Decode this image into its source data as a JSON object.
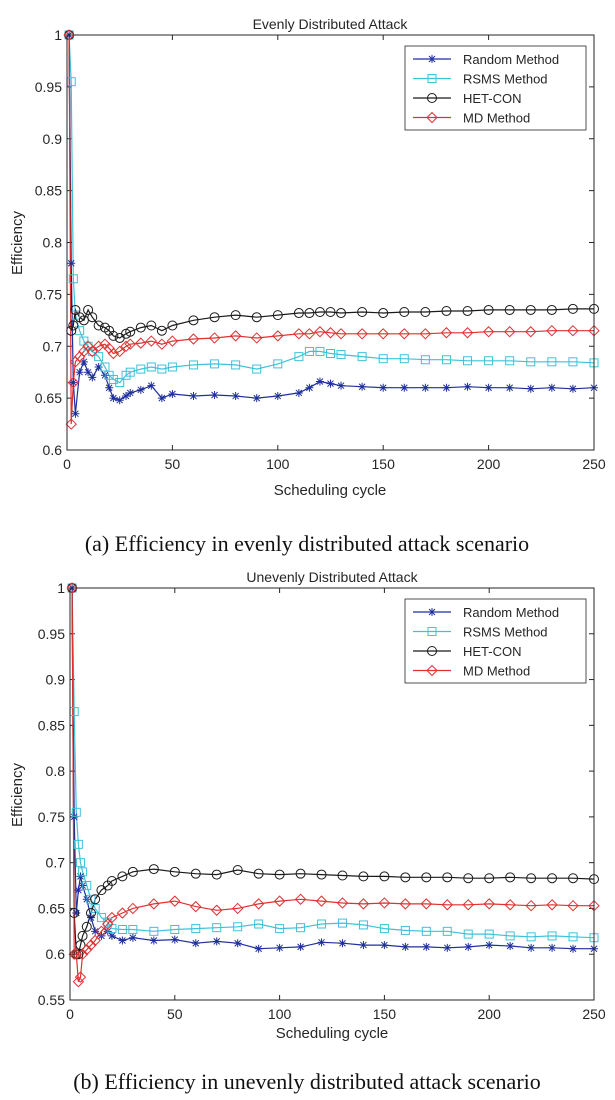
{
  "chart_data": [
    {
      "type": "line",
      "title": "Evenly Distributed Attack",
      "xlabel": "Scheduling cycle",
      "ylabel": "Efficiency",
      "xlim": [
        0,
        250
      ],
      "ylim": [
        0.6,
        1.0
      ],
      "xticks": [
        "0",
        "50",
        "100",
        "150",
        "200",
        "250"
      ],
      "yticks": [
        "0.6",
        "0.65",
        "0.7",
        "0.75",
        "0.8",
        "0.85",
        "0.9",
        "0.95",
        "1"
      ],
      "caption": "(a) Efficiency in evenly distributed attack scenario",
      "legend": [
        "Random Method",
        "RSMS Method",
        "HET-CON",
        "MD Method"
      ],
      "series": [
        {
          "name": "Random Method",
          "color": "#1f2f9e",
          "marker": "star",
          "x": [
            1,
            2,
            3,
            4,
            6,
            8,
            10,
            12,
            15,
            18,
            20,
            22,
            25,
            28,
            30,
            35,
            40,
            45,
            50,
            60,
            70,
            80,
            90,
            100,
            110,
            115,
            120,
            125,
            130,
            140,
            150,
            160,
            170,
            180,
            190,
            200,
            210,
            220,
            230,
            240,
            250
          ],
          "values": [
            1.0,
            0.78,
            0.665,
            0.635,
            0.675,
            0.685,
            0.675,
            0.67,
            0.68,
            0.672,
            0.66,
            0.65,
            0.648,
            0.652,
            0.655,
            0.658,
            0.662,
            0.65,
            0.654,
            0.652,
            0.653,
            0.652,
            0.65,
            0.652,
            0.655,
            0.66,
            0.666,
            0.664,
            0.662,
            0.661,
            0.66,
            0.66,
            0.66,
            0.66,
            0.661,
            0.66,
            0.66,
            0.659,
            0.66,
            0.659,
            0.66
          ]
        },
        {
          "name": "RSMS Method",
          "color": "#3ec2d9",
          "marker": "square",
          "x": [
            1,
            2,
            3,
            4,
            6,
            8,
            10,
            12,
            15,
            18,
            20,
            22,
            25,
            28,
            30,
            35,
            40,
            45,
            50,
            60,
            70,
            80,
            90,
            100,
            110,
            115,
            120,
            125,
            130,
            140,
            150,
            160,
            170,
            180,
            190,
            200,
            210,
            220,
            230,
            240,
            250
          ],
          "values": [
            1.0,
            0.955,
            0.765,
            0.73,
            0.715,
            0.705,
            0.7,
            0.695,
            0.69,
            0.68,
            0.672,
            0.668,
            0.665,
            0.672,
            0.675,
            0.678,
            0.68,
            0.678,
            0.68,
            0.682,
            0.683,
            0.682,
            0.678,
            0.683,
            0.69,
            0.695,
            0.695,
            0.693,
            0.692,
            0.69,
            0.688,
            0.688,
            0.687,
            0.687,
            0.686,
            0.686,
            0.686,
            0.685,
            0.685,
            0.685,
            0.684
          ]
        },
        {
          "name": "HET-CON",
          "color": "#1a1a1a",
          "marker": "circle",
          "x": [
            1,
            2,
            3,
            4,
            6,
            8,
            10,
            12,
            15,
            18,
            20,
            22,
            25,
            28,
            30,
            35,
            40,
            45,
            50,
            60,
            70,
            80,
            90,
            100,
            110,
            115,
            120,
            125,
            130,
            140,
            150,
            160,
            170,
            180,
            190,
            200,
            210,
            220,
            230,
            240,
            250
          ],
          "values": [
            1.0,
            0.715,
            0.72,
            0.735,
            0.728,
            0.725,
            0.735,
            0.728,
            0.72,
            0.718,
            0.715,
            0.71,
            0.708,
            0.712,
            0.714,
            0.718,
            0.72,
            0.715,
            0.72,
            0.725,
            0.728,
            0.73,
            0.728,
            0.73,
            0.732,
            0.732,
            0.733,
            0.733,
            0.732,
            0.733,
            0.732,
            0.733,
            0.733,
            0.734,
            0.734,
            0.735,
            0.735,
            0.735,
            0.735,
            0.736,
            0.736
          ]
        },
        {
          "name": "MD Method",
          "color": "#e03030",
          "marker": "diamond",
          "x": [
            1,
            2,
            3,
            4,
            6,
            8,
            10,
            12,
            15,
            18,
            20,
            22,
            25,
            28,
            30,
            35,
            40,
            45,
            50,
            60,
            70,
            80,
            90,
            100,
            110,
            115,
            120,
            125,
            130,
            140,
            150,
            160,
            170,
            180,
            190,
            200,
            210,
            220,
            230,
            240,
            250
          ],
          "values": [
            1.0,
            0.625,
            0.665,
            0.685,
            0.69,
            0.695,
            0.7,
            0.695,
            0.7,
            0.702,
            0.698,
            0.693,
            0.695,
            0.7,
            0.702,
            0.703,
            0.705,
            0.702,
            0.705,
            0.707,
            0.708,
            0.71,
            0.708,
            0.71,
            0.712,
            0.712,
            0.714,
            0.713,
            0.712,
            0.712,
            0.712,
            0.712,
            0.712,
            0.713,
            0.713,
            0.714,
            0.714,
            0.714,
            0.715,
            0.715,
            0.715
          ]
        }
      ]
    },
    {
      "type": "line",
      "title": "Unevenly Distributed Attack",
      "xlabel": "Scheduling cycle",
      "ylabel": "Efficiency",
      "xlim": [
        0,
        250
      ],
      "ylim": [
        0.55,
        1.0
      ],
      "xticks": [
        "0",
        "50",
        "100",
        "150",
        "200",
        "250"
      ],
      "yticks": [
        "0.55",
        "0.6",
        "0.65",
        "0.7",
        "0.75",
        "0.8",
        "0.85",
        "0.9",
        "0.95",
        "1"
      ],
      "caption": "(b) Efficiency in unevenly distributed attack scenario",
      "legend": [
        "Random Method",
        "RSMS Method",
        "HET-CON",
        "MD Method"
      ],
      "series": [
        {
          "name": "Random Method",
          "color": "#1f2f9e",
          "marker": "star",
          "x": [
            1,
            2,
            3,
            4,
            5,
            6,
            8,
            10,
            12,
            15,
            18,
            20,
            25,
            30,
            40,
            50,
            60,
            70,
            80,
            90,
            100,
            110,
            120,
            130,
            140,
            150,
            160,
            170,
            180,
            190,
            200,
            210,
            220,
            230,
            240,
            250
          ],
          "values": [
            1.0,
            0.75,
            0.645,
            0.67,
            0.685,
            0.675,
            0.66,
            0.64,
            0.625,
            0.62,
            0.625,
            0.62,
            0.615,
            0.618,
            0.615,
            0.616,
            0.612,
            0.614,
            0.612,
            0.606,
            0.607,
            0.608,
            0.613,
            0.612,
            0.61,
            0.61,
            0.608,
            0.608,
            0.607,
            0.608,
            0.61,
            0.609,
            0.607,
            0.607,
            0.606,
            0.606
          ]
        },
        {
          "name": "RSMS Method",
          "color": "#3ec2d9",
          "marker": "square",
          "x": [
            1,
            2,
            3,
            4,
            5,
            6,
            8,
            10,
            12,
            15,
            18,
            20,
            25,
            30,
            40,
            50,
            60,
            70,
            80,
            90,
            100,
            110,
            120,
            130,
            140,
            150,
            160,
            170,
            180,
            190,
            200,
            210,
            220,
            230,
            240,
            250
          ],
          "values": [
            1.0,
            0.865,
            0.755,
            0.72,
            0.7,
            0.69,
            0.675,
            0.66,
            0.65,
            0.64,
            0.635,
            0.628,
            0.627,
            0.627,
            0.625,
            0.627,
            0.628,
            0.629,
            0.63,
            0.633,
            0.628,
            0.629,
            0.633,
            0.634,
            0.632,
            0.628,
            0.626,
            0.625,
            0.625,
            0.622,
            0.622,
            0.62,
            0.619,
            0.62,
            0.619,
            0.618
          ]
        },
        {
          "name": "HET-CON",
          "color": "#1a1a1a",
          "marker": "circle",
          "x": [
            1,
            2,
            3,
            4,
            5,
            6,
            8,
            10,
            12,
            15,
            18,
            20,
            25,
            30,
            40,
            50,
            60,
            70,
            80,
            90,
            100,
            110,
            120,
            130,
            140,
            150,
            160,
            170,
            180,
            190,
            200,
            210,
            220,
            230,
            240,
            250
          ],
          "values": [
            1.0,
            0.645,
            0.6,
            0.6,
            0.61,
            0.62,
            0.63,
            0.645,
            0.66,
            0.67,
            0.675,
            0.68,
            0.685,
            0.69,
            0.693,
            0.69,
            0.688,
            0.687,
            0.692,
            0.688,
            0.687,
            0.688,
            0.687,
            0.686,
            0.685,
            0.685,
            0.684,
            0.684,
            0.684,
            0.683,
            0.683,
            0.684,
            0.683,
            0.683,
            0.683,
            0.682
          ]
        },
        {
          "name": "MD Method",
          "color": "#e03030",
          "marker": "diamond",
          "x": [
            1,
            2,
            3,
            4,
            5,
            6,
            8,
            10,
            12,
            15,
            18,
            20,
            25,
            30,
            40,
            50,
            60,
            70,
            80,
            90,
            100,
            110,
            120,
            130,
            140,
            150,
            160,
            170,
            180,
            190,
            200,
            210,
            220,
            230,
            240,
            250
          ],
          "values": [
            1.0,
            0.6,
            0.6,
            0.57,
            0.575,
            0.6,
            0.605,
            0.61,
            0.615,
            0.625,
            0.633,
            0.64,
            0.645,
            0.65,
            0.655,
            0.658,
            0.652,
            0.648,
            0.65,
            0.655,
            0.658,
            0.66,
            0.658,
            0.656,
            0.655,
            0.656,
            0.655,
            0.655,
            0.654,
            0.654,
            0.655,
            0.654,
            0.653,
            0.654,
            0.653,
            0.653
          ]
        }
      ]
    }
  ]
}
